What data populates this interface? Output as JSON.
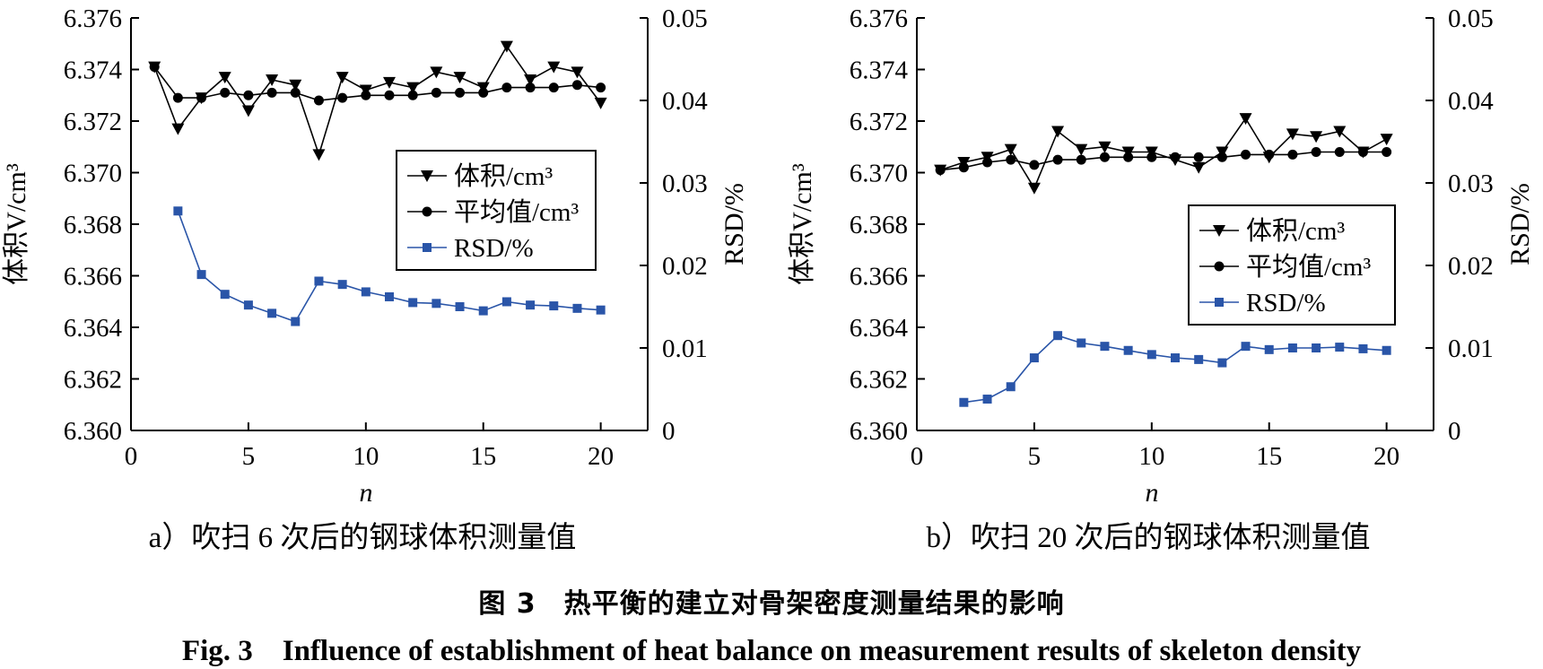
{
  "chart_data": [
    {
      "type": "line",
      "subtitle": "a）吹扫 6 次后的钢球体积测量值",
      "xlabel": "n",
      "ylabel": "体积V/cm³",
      "y2label": "RSD/%",
      "xlim": [
        0,
        22
      ],
      "xticks": [
        0,
        5,
        10,
        15,
        20
      ],
      "ylim": [
        6.36,
        6.376
      ],
      "yticks": [
        "6.360",
        "6.362",
        "6.364",
        "6.366",
        "6.368",
        "6.370",
        "6.372",
        "6.374",
        "6.376"
      ],
      "y2lim": [
        0,
        0.05
      ],
      "y2ticks": [
        "0",
        "0.01",
        "0.02",
        "0.03",
        "0.04",
        "0.05"
      ],
      "legend_position": "center-right",
      "series": [
        {
          "name": "体积/cm³",
          "marker": "triangle-down",
          "color": "#000000",
          "axis": "left",
          "x": [
            1,
            2,
            3,
            4,
            5,
            6,
            7,
            8,
            9,
            10,
            11,
            12,
            13,
            14,
            15,
            16,
            17,
            18,
            19,
            20
          ],
          "values": [
            6.3741,
            6.3717,
            6.3729,
            6.3737,
            6.3724,
            6.3736,
            6.3734,
            6.3707,
            6.3737,
            6.3732,
            6.3735,
            6.3733,
            6.3739,
            6.3737,
            6.3733,
            6.3749,
            6.3736,
            6.3741,
            6.3739,
            6.3727
          ]
        },
        {
          "name": "平均值/cm³",
          "marker": "circle",
          "color": "#000000",
          "axis": "left",
          "x": [
            1,
            2,
            3,
            4,
            5,
            6,
            7,
            8,
            9,
            10,
            11,
            12,
            13,
            14,
            15,
            16,
            17,
            18,
            19,
            20
          ],
          "values": [
            6.3741,
            6.3729,
            6.3729,
            6.3731,
            6.373,
            6.3731,
            6.3731,
            6.3728,
            6.3729,
            6.373,
            6.373,
            6.373,
            6.3731,
            6.3731,
            6.3731,
            6.3733,
            6.3733,
            6.3733,
            6.3734,
            6.3733
          ]
        },
        {
          "name": "RSD/%",
          "marker": "square",
          "color": "#2a55a8",
          "axis": "right",
          "x": [
            2,
            3,
            4,
            5,
            6,
            7,
            8,
            9,
            10,
            11,
            12,
            13,
            14,
            15,
            16,
            17,
            18,
            19,
            20
          ],
          "values": [
            0.0266,
            0.0189,
            0.0165,
            0.0152,
            0.0142,
            0.0132,
            0.0181,
            0.0177,
            0.0168,
            0.0162,
            0.0155,
            0.0154,
            0.015,
            0.0145,
            0.0156,
            0.0152,
            0.0151,
            0.0148,
            0.0146
          ]
        }
      ]
    },
    {
      "type": "line",
      "subtitle": "b）吹扫 20 次后的钢球体积测量值",
      "xlabel": "n",
      "ylabel": "体积V/cm³",
      "y2label": "RSD/%",
      "xlim": [
        0,
        22
      ],
      "xticks": [
        0,
        5,
        10,
        15,
        20
      ],
      "ylim": [
        6.36,
        6.376
      ],
      "yticks": [
        "6.360",
        "6.362",
        "6.364",
        "6.366",
        "6.368",
        "6.370",
        "6.372",
        "6.374",
        "6.376"
      ],
      "y2lim": [
        0,
        0.05
      ],
      "y2ticks": [
        "0",
        "0.01",
        "0.02",
        "0.03",
        "0.04",
        "0.05"
      ],
      "legend_position": "center-right",
      "series": [
        {
          "name": "体积/cm³",
          "marker": "triangle-down",
          "color": "#000000",
          "axis": "left",
          "x": [
            1,
            2,
            3,
            4,
            5,
            6,
            7,
            8,
            9,
            10,
            11,
            12,
            13,
            14,
            15,
            16,
            17,
            18,
            19,
            20
          ],
          "values": [
            6.3701,
            6.3704,
            6.3706,
            6.3709,
            6.3694,
            6.3716,
            6.3709,
            6.371,
            6.3708,
            6.3708,
            6.3705,
            6.3702,
            6.3708,
            6.3721,
            6.3706,
            6.3715,
            6.3714,
            6.3716,
            6.3708,
            6.3713
          ]
        },
        {
          "name": "平均值/cm³",
          "marker": "circle",
          "color": "#000000",
          "axis": "left",
          "x": [
            1,
            2,
            3,
            4,
            5,
            6,
            7,
            8,
            9,
            10,
            11,
            12,
            13,
            14,
            15,
            16,
            17,
            18,
            19,
            20
          ],
          "values": [
            6.3701,
            6.3702,
            6.3704,
            6.3705,
            6.3703,
            6.3705,
            6.3705,
            6.3706,
            6.3706,
            6.3706,
            6.3706,
            6.3706,
            6.3706,
            6.3707,
            6.3707,
            6.3707,
            6.3708,
            6.3708,
            6.3708,
            6.3708
          ]
        },
        {
          "name": "RSD/%",
          "marker": "square",
          "color": "#2a55a8",
          "axis": "right",
          "x": [
            2,
            3,
            4,
            5,
            6,
            7,
            8,
            9,
            10,
            11,
            12,
            13,
            14,
            15,
            16,
            17,
            18,
            19,
            20
          ],
          "values": [
            0.0034,
            0.0038,
            0.0053,
            0.0088,
            0.0115,
            0.0106,
            0.0102,
            0.0097,
            0.0092,
            0.0088,
            0.0086,
            0.0082,
            0.0102,
            0.0098,
            0.01,
            0.01,
            0.0101,
            0.0099,
            0.0097
          ]
        }
      ]
    }
  ],
  "figure_caption_cn": "图 3　热平衡的建立对骨架密度测量结果的影响",
  "figure_caption_en": "Fig. 3　Influence of establishment of heat balance on measurement results of skeleton density"
}
